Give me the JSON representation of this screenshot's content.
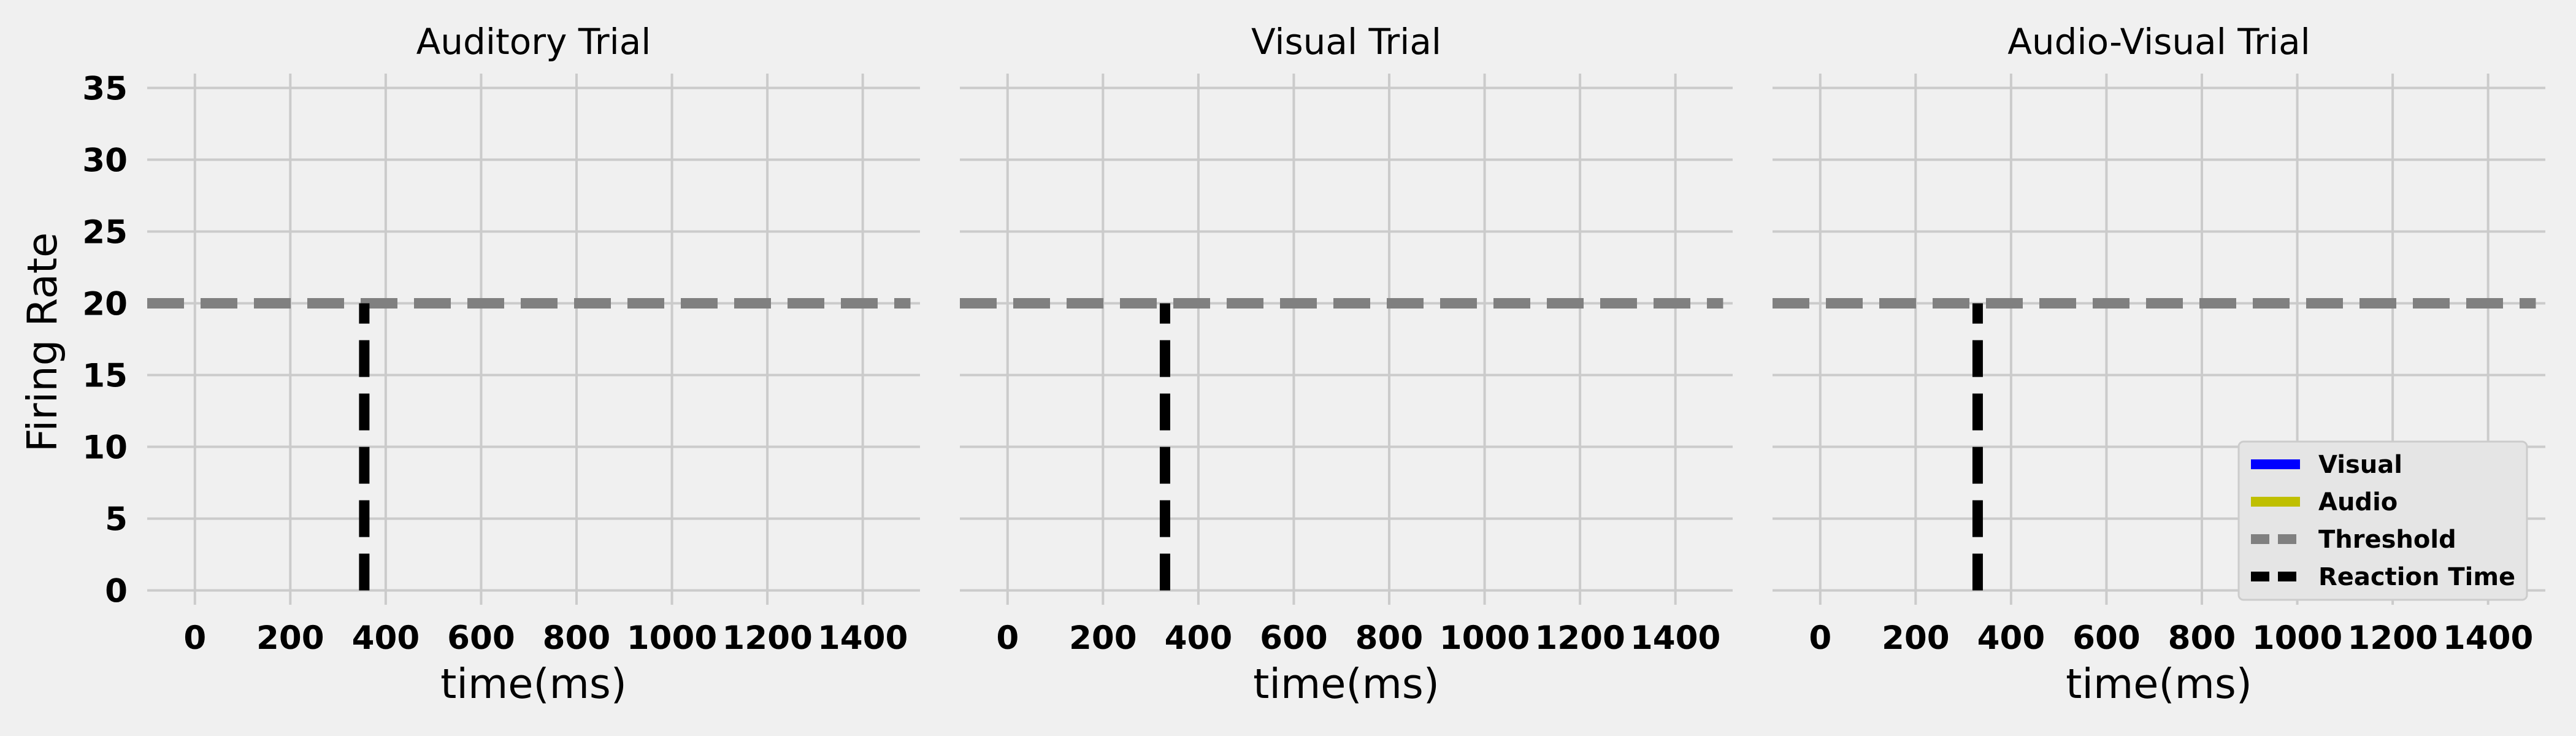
{
  "figure": {
    "ylabel": "Firing Rate",
    "background": "#f0f0f0",
    "grid_color": "#cbcbcb"
  },
  "chart_data": [
    {
      "type": "line",
      "title": "Auditory Trial",
      "xlabel": "time(ms)",
      "ylabel": "Firing Rate",
      "xlim": [
        -100,
        1520
      ],
      "ylim": [
        -1,
        36
      ],
      "xticks": [
        0,
        200,
        400,
        600,
        800,
        1000,
        1200,
        1400
      ],
      "yticks": [
        0,
        5,
        10,
        15,
        20,
        25,
        30,
        35
      ],
      "grid": true,
      "series": [
        {
          "name": "Visual",
          "color": "#0000ff",
          "x": [],
          "y": []
        },
        {
          "name": "Audio",
          "color": "#bfbf00",
          "x": [],
          "y": []
        },
        {
          "name": "Threshold",
          "color": "#808080",
          "style": "dashed",
          "x": [
            -100,
            1500
          ],
          "y": [
            20,
            20
          ]
        },
        {
          "name": "Reaction Time",
          "color": "#000000",
          "style": "dashed",
          "x": [
            355,
            355
          ],
          "y": [
            0,
            20
          ]
        }
      ]
    },
    {
      "type": "line",
      "title": "Visual Trial",
      "xlabel": "time(ms)",
      "ylabel": "",
      "xlim": [
        -100,
        1520
      ],
      "ylim": [
        -1,
        36
      ],
      "xticks": [
        0,
        200,
        400,
        600,
        800,
        1000,
        1200,
        1400
      ],
      "yticks": [
        0,
        5,
        10,
        15,
        20,
        25,
        30,
        35
      ],
      "grid": true,
      "series": [
        {
          "name": "Visual",
          "color": "#0000ff",
          "x": [],
          "y": []
        },
        {
          "name": "Audio",
          "color": "#bfbf00",
          "x": [],
          "y": []
        },
        {
          "name": "Threshold",
          "color": "#808080",
          "style": "dashed",
          "x": [
            -100,
            1500
          ],
          "y": [
            20,
            20
          ]
        },
        {
          "name": "Reaction Time",
          "color": "#000000",
          "style": "dashed",
          "x": [
            330,
            330
          ],
          "y": [
            0,
            20
          ]
        }
      ]
    },
    {
      "type": "line",
      "title": "Audio-Visual Trial",
      "xlabel": "time(ms)",
      "ylabel": "",
      "xlim": [
        -100,
        1520
      ],
      "ylim": [
        -1,
        36
      ],
      "xticks": [
        0,
        200,
        400,
        600,
        800,
        1000,
        1200,
        1400
      ],
      "yticks": [
        0,
        5,
        10,
        15,
        20,
        25,
        30,
        35
      ],
      "grid": true,
      "legend": {
        "placement": "lower-right",
        "entries": [
          {
            "label": "Visual",
            "color": "#0000ff",
            "style": "solid"
          },
          {
            "label": "Audio",
            "color": "#bfbf00",
            "style": "solid"
          },
          {
            "label": "Threshold",
            "color": "#808080",
            "style": "dashed"
          },
          {
            "label": "Reaction Time",
            "color": "#000000",
            "style": "dashed"
          }
        ]
      },
      "series": [
        {
          "name": "Visual",
          "color": "#0000ff",
          "x": [],
          "y": []
        },
        {
          "name": "Audio",
          "color": "#bfbf00",
          "x": [],
          "y": []
        },
        {
          "name": "Threshold",
          "color": "#808080",
          "style": "dashed",
          "x": [
            -100,
            1500
          ],
          "y": [
            20,
            20
          ]
        },
        {
          "name": "Reaction Time",
          "color": "#000000",
          "style": "dashed",
          "x": [
            330,
            330
          ],
          "y": [
            0,
            20
          ]
        }
      ]
    }
  ]
}
